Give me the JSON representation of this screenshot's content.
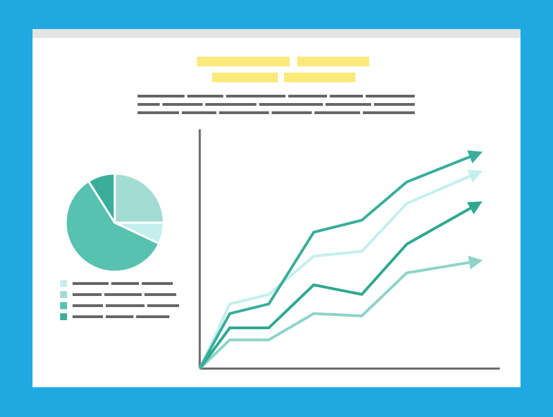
{
  "colors": {
    "background": "#1fa9e0",
    "window": "#ffffff",
    "title_bar": "#e4e4e4",
    "heading_placeholder": "#fbe97a",
    "text_placeholder": "#666666",
    "axis": "#666666"
  },
  "pie": {
    "slices": [
      {
        "value": 25,
        "color": "#a3dcd3"
      },
      {
        "value": 7,
        "color": "#c4efee"
      },
      {
        "value": 59,
        "color": "#58c2b1"
      },
      {
        "value": 9,
        "color": "#3aae9a"
      }
    ]
  },
  "legend": {
    "swatches": [
      "#c4efee",
      "#a3dcd3",
      "#58c2b1",
      "#3aae9a"
    ]
  },
  "chart_data": {
    "type": "line",
    "x": [
      0,
      10,
      23,
      38,
      54,
      69,
      93
    ],
    "ylim": [
      0,
      100
    ],
    "xlim": [
      0,
      100
    ],
    "grid": false,
    "series": [
      {
        "color": "#3aae9a",
        "values": [
          0,
          23,
          27,
          57,
          62,
          78,
          90
        ]
      },
      {
        "color": "#c4efee",
        "values": [
          0,
          27,
          31,
          47,
          49,
          69,
          82
        ]
      },
      {
        "color": "#2fa88f",
        "values": [
          0,
          17,
          17,
          35,
          31,
          52,
          69
        ]
      },
      {
        "color": "#8ed3c9",
        "values": [
          0,
          12,
          12,
          23,
          22,
          40,
          45
        ]
      }
    ]
  }
}
